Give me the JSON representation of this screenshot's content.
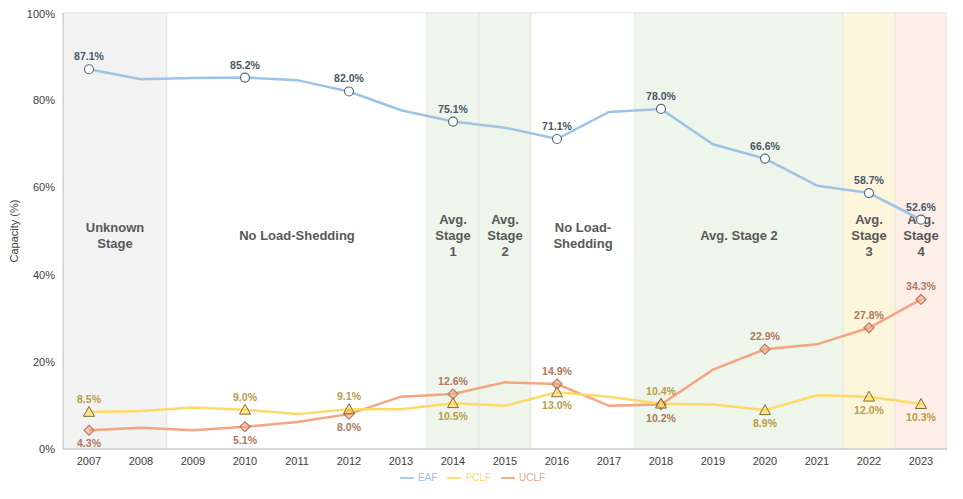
{
  "chart_data": {
    "type": "line",
    "y_label": "Capacity (%)",
    "x": [
      2007,
      2008,
      2009,
      2010,
      2011,
      2012,
      2013,
      2014,
      2015,
      2016,
      2017,
      2018,
      2019,
      2020,
      2021,
      2022,
      2023
    ],
    "xlim": [
      2006.5,
      2023.5
    ],
    "xticks": [
      2007,
      2008,
      2009,
      2010,
      2011,
      2012,
      2013,
      2014,
      2015,
      2016,
      2017,
      2018,
      2019,
      2020,
      2021,
      2022,
      2023
    ],
    "ylim": [
      0,
      100
    ],
    "yticks": [
      {
        "value": 0,
        "label": "0%"
      },
      {
        "value": 20,
        "label": "20%"
      },
      {
        "value": 40,
        "label": "40%"
      },
      {
        "value": 60,
        "label": "60%"
      },
      {
        "value": 80,
        "label": "80%"
      },
      {
        "value": 100,
        "label": "100%"
      }
    ],
    "grid": true,
    "legend": "bottom",
    "data_labels": true,
    "series": [
      {
        "name": "EAF",
        "color": "#9dc3e6",
        "marker": "circle",
        "values": [
          87.1,
          84.8,
          85.1,
          85.2,
          84.6,
          82.0,
          77.7,
          75.1,
          73.7,
          71.1,
          77.3,
          78.0,
          69.9,
          66.6,
          60.4,
          58.7,
          52.6
        ],
        "value_labels": [
          "87.1%",
          null,
          null,
          "85.2%",
          null,
          "82.0%",
          null,
          "75.1%",
          null,
          "71.1%",
          null,
          "78.0%",
          null,
          "66.6%",
          null,
          "58.7%",
          "52.6%"
        ]
      },
      {
        "name": "UCLF",
        "color": "#f4a582",
        "marker": "diamond",
        "values": [
          4.3,
          4.9,
          4.3,
          5.1,
          6.2,
          8.0,
          12.0,
          12.6,
          15.3,
          14.9,
          9.9,
          10.2,
          18.2,
          22.9,
          24.0,
          27.8,
          34.3
        ],
        "value_labels": [
          "4.3%",
          null,
          null,
          "5.1%",
          null,
          "8.0%",
          null,
          "12.6%",
          null,
          "14.9%",
          null,
          "10.2%",
          null,
          "22.9%",
          null,
          "27.8%",
          "34.3%"
        ]
      },
      {
        "name": "PCLF",
        "color": "#ffd966",
        "marker": "triangle",
        "values": [
          8.5,
          8.7,
          9.5,
          9.0,
          8.0,
          9.1,
          9.1,
          10.5,
          9.9,
          13.0,
          12.0,
          10.4,
          10.2,
          8.9,
          12.3,
          12.0,
          10.3
        ],
        "value_labels": [
          "8.5%",
          null,
          null,
          "9.0%",
          null,
          "9.1%",
          null,
          "10.5%",
          null,
          "13.0%",
          null,
          "10.4%",
          null,
          "8.9%",
          null,
          "12.0%",
          "10.3%"
        ]
      }
    ],
    "regions": [
      {
        "label": "Unknown Stage",
        "x_range": [
          2006.5,
          2008.5
        ],
        "color": "#f2f2f2"
      },
      {
        "label": "No Load-Shedding",
        "x_range": [
          2008.5,
          2013.5
        ],
        "color": "#ffffff"
      },
      {
        "label": "Avg. Stage 1",
        "x_range": [
          2013.5,
          2014.5
        ],
        "color": "#eef5ea"
      },
      {
        "label": "Avg. Stage 2",
        "x_range": [
          2014.5,
          2015.5
        ],
        "color": "#eef5ea"
      },
      {
        "label": "No Load-Shedding",
        "x_range": [
          2015.5,
          2017.5
        ],
        "color": "#ffffff"
      },
      {
        "label": "Avg. Stage 2",
        "x_range": [
          2017.5,
          2021.5
        ],
        "color": "#eef5ea"
      },
      {
        "label": "Avg. Stage 3",
        "x_range": [
          2021.5,
          2022.5
        ],
        "color": "#fdf5dc"
      },
      {
        "label": "Avg. Stage 4",
        "x_range": [
          2022.5,
          2023.5
        ],
        "color": "#fdeee8"
      }
    ]
  }
}
